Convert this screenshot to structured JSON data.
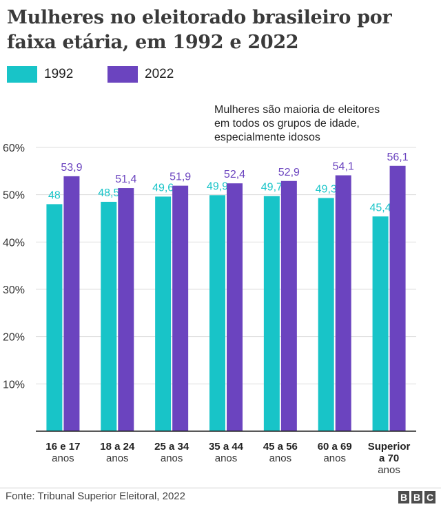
{
  "title": "Mulheres no eleitorado brasileiro por faixa etária, em 1992 e 2022",
  "annotation": [
    "Mulheres são maioria de eleitores",
    "em todos os grupos de idade,",
    "especialmente idosos"
  ],
  "source": "Fonte: Tribunal Superior Eleitoral, 2022",
  "logo": [
    "B",
    "B",
    "C"
  ],
  "colors": {
    "s1992": "#18c4c8",
    "s2022": "#6b44bf",
    "axis": "#222222",
    "grid": "#dddddd"
  },
  "chart_data": {
    "type": "bar",
    "categories": [
      {
        "bold": [
          "16 e 17"
        ],
        "normal": "anos"
      },
      {
        "bold": [
          "18 a 24"
        ],
        "normal": "anos"
      },
      {
        "bold": [
          "25 a 34"
        ],
        "normal": "anos"
      },
      {
        "bold": [
          "35 a 44"
        ],
        "normal": "anos"
      },
      {
        "bold": [
          "45 a 56"
        ],
        "normal": "anos"
      },
      {
        "bold": [
          "60 a 69"
        ],
        "normal": "anos"
      },
      {
        "bold": [
          "Superior",
          "a 70"
        ],
        "normal": "anos"
      }
    ],
    "series": [
      {
        "name": "1992",
        "values": [
          48,
          48.5,
          49.6,
          49.9,
          49.7,
          49.3,
          45.4
        ],
        "labels": [
          "48",
          "48,5",
          "49,6",
          "49,9",
          "49,7",
          "49,3",
          "45,4"
        ]
      },
      {
        "name": "2022",
        "values": [
          53.9,
          51.4,
          51.9,
          52.4,
          52.9,
          54.1,
          56.1
        ],
        "labels": [
          "53,9",
          "51,4",
          "51,9",
          "52,4",
          "52,9",
          "54,1",
          "56,1"
        ]
      }
    ],
    "yticks": [
      10,
      20,
      30,
      40,
      50,
      60
    ],
    "ytick_labels": [
      "10%",
      "20%",
      "30%",
      "40%",
      "50%",
      "60%"
    ],
    "ylim": [
      0,
      60
    ],
    "legend": "top-left"
  }
}
